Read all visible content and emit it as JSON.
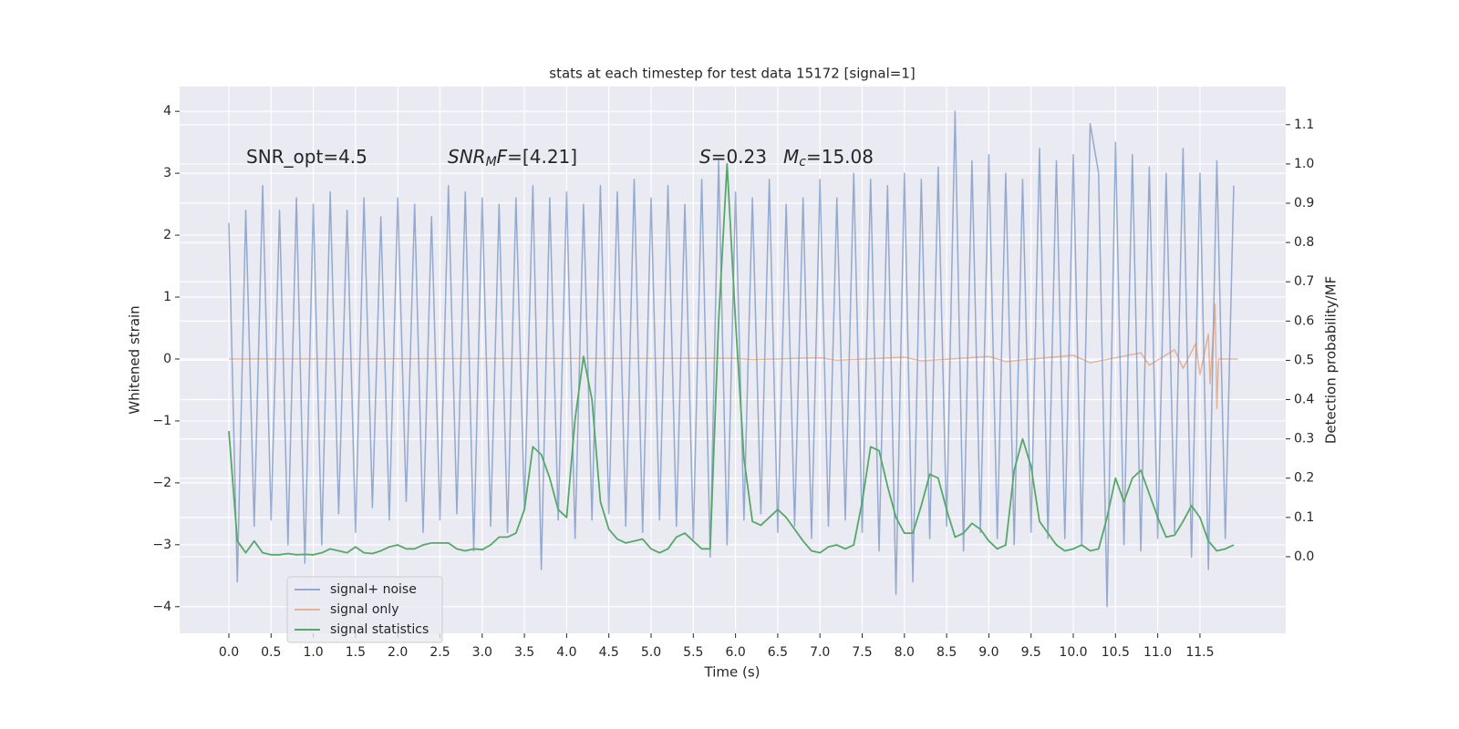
{
  "chart_data": {
    "type": "line",
    "title": "stats at each timestep for test data 15172 [signal=1]",
    "xlabel": "Time (s)",
    "ylabel": "Whitened strain",
    "y2label": "Detection probability/MF",
    "xlim": [
      -0.583,
      12.516
    ],
    "ylim": [
      -4.43,
      4.4
    ],
    "y2lim": [
      -0.195,
      1.197
    ],
    "grid": true,
    "legend": "lower left",
    "xticks": [
      {
        "value": 0,
        "label": "0.0"
      },
      {
        "value": 0.5,
        "label": "0.5"
      },
      {
        "value": 1,
        "label": "1.0"
      },
      {
        "value": 1.5,
        "label": "1.5"
      },
      {
        "value": 2,
        "label": "2.0"
      },
      {
        "value": 2.5,
        "label": "2.5"
      },
      {
        "value": 3,
        "label": "3.0"
      },
      {
        "value": 3.5,
        "label": "3.5"
      },
      {
        "value": 4,
        "label": "4.0"
      },
      {
        "value": 4.5,
        "label": "4.5"
      },
      {
        "value": 5,
        "label": "5.0"
      },
      {
        "value": 5.5,
        "label": "5.5"
      },
      {
        "value": 6,
        "label": "6.0"
      },
      {
        "value": 6.5,
        "label": "6.5"
      },
      {
        "value": 7,
        "label": "7.0"
      },
      {
        "value": 7.5,
        "label": "7.5"
      },
      {
        "value": 8,
        "label": "8.0"
      },
      {
        "value": 8.5,
        "label": "8.5"
      },
      {
        "value": 9,
        "label": "9.0"
      },
      {
        "value": 9.5,
        "label": "9.5"
      },
      {
        "value": 10,
        "label": "10.0"
      },
      {
        "value": 10.5,
        "label": "10.5"
      },
      {
        "value": 11,
        "label": "11.0"
      },
      {
        "value": 11.5,
        "label": "11.5"
      }
    ],
    "yticks": [
      {
        "value": -4,
        "label": "−4"
      },
      {
        "value": -3,
        "label": "−3"
      },
      {
        "value": -2,
        "label": "−2"
      },
      {
        "value": -1,
        "label": "−1"
      },
      0,
      1,
      2,
      3,
      4
    ],
    "y2ticks": [
      {
        "value": 0,
        "label": "0.0"
      },
      {
        "value": 0.1,
        "label": "0.1"
      },
      {
        "value": 0.2,
        "label": "0.2"
      },
      {
        "value": 0.3,
        "label": "0.3"
      },
      {
        "value": 0.4,
        "label": "0.4"
      },
      {
        "value": 0.5,
        "label": "0.5"
      },
      {
        "value": 0.6,
        "label": "0.6"
      },
      {
        "value": 0.7,
        "label": "0.7"
      },
      {
        "value": 0.8,
        "label": "0.8"
      },
      {
        "value": 0.9,
        "label": "0.9"
      },
      {
        "value": 1,
        "label": "1.0"
      },
      {
        "value": 1.1,
        "label": "1.1"
      }
    ],
    "annotations": [
      {
        "parts": [
          {
            "text": "SNR_opt=4.5",
            "style": "normal"
          }
        ]
      },
      {
        "parts": [
          {
            "text": "SNR",
            "style": "italic"
          },
          {
            "text": "M",
            "style": "sub"
          },
          {
            "text": "F",
            "style": "italic"
          },
          {
            "text": "=[4.21]",
            "style": "normal"
          }
        ]
      },
      {
        "parts": [
          {
            "text": "S",
            "style": "italic"
          },
          {
            "text": "=0.23",
            "style": "normal"
          }
        ]
      },
      {
        "parts": [
          {
            "text": "M",
            "style": "italic"
          },
          {
            "text": "c",
            "style": "sub"
          },
          {
            "text": "=15.08",
            "style": "normal"
          }
        ]
      }
    ],
    "series": [
      {
        "name": "signal+ noise",
        "color": "#4c72b0",
        "opacity": 0.55,
        "axis": "y",
        "x": [
          0,
          0.1,
          0.2,
          0.3,
          0.4,
          0.5,
          0.6,
          0.7,
          0.8,
          0.9,
          1,
          1.1,
          1.2,
          1.3,
          1.4,
          1.5,
          1.6,
          1.7,
          1.8,
          1.9,
          2,
          2.1,
          2.2,
          2.3,
          2.4,
          2.5,
          2.6,
          2.7,
          2.8,
          2.9,
          3,
          3.1,
          3.2,
          3.3,
          3.4,
          3.5,
          3.6,
          3.7,
          3.8,
          3.9,
          4,
          4.1,
          4.2,
          4.3,
          4.4,
          4.5,
          4.6,
          4.7,
          4.8,
          4.9,
          5,
          5.1,
          5.2,
          5.3,
          5.4,
          5.5,
          5.6,
          5.7,
          5.8,
          5.9,
          6,
          6.1,
          6.2,
          6.3,
          6.4,
          6.5,
          6.6,
          6.7,
          6.8,
          6.9,
          7,
          7.1,
          7.2,
          7.3,
          7.4,
          7.5,
          7.6,
          7.7,
          7.8,
          7.9,
          8,
          8.1,
          8.2,
          8.3,
          8.4,
          8.5,
          8.6,
          8.7,
          8.8,
          8.9,
          9,
          9.1,
          9.2,
          9.3,
          9.4,
          9.5,
          9.6,
          9.7,
          9.8,
          9.9,
          10,
          10.1,
          10.2,
          10.3,
          10.4,
          10.5,
          10.6,
          10.7,
          10.8,
          10.9,
          11,
          11.1,
          11.2,
          11.3,
          11.4,
          11.5,
          11.6,
          11.7,
          11.8,
          11.9
        ],
        "values": [
          2.2,
          -3.6,
          2.4,
          -2.7,
          2.8,
          -2.6,
          2.4,
          -3.0,
          2.6,
          -3.3,
          2.5,
          -3.0,
          2.7,
          -2.5,
          2.4,
          -2.8,
          2.6,
          -2.4,
          2.3,
          -2.6,
          2.6,
          -2.3,
          2.5,
          -2.8,
          2.3,
          -2.6,
          2.8,
          -2.5,
          2.7,
          -3.1,
          2.6,
          -2.7,
          2.5,
          -2.8,
          2.6,
          -2.4,
          2.8,
          -3.4,
          2.6,
          -2.6,
          2.7,
          -2.9,
          2.5,
          -2.6,
          2.8,
          -2.5,
          2.7,
          -2.7,
          2.9,
          -2.8,
          2.6,
          -2.6,
          2.8,
          -2.7,
          2.5,
          -2.9,
          2.9,
          -3.2,
          3.2,
          -3.0,
          2.7,
          -2.6,
          2.6,
          -2.5,
          2.9,
          -2.8,
          2.5,
          -2.7,
          2.6,
          -2.9,
          2.9,
          -2.7,
          2.6,
          -2.6,
          3.0,
          -2.8,
          2.9,
          -3.1,
          2.8,
          -3.8,
          3.0,
          -3.6,
          2.9,
          -2.9,
          3.1,
          -2.7,
          4.0,
          -3.1,
          3.2,
          -2.8,
          3.3,
          -2.9,
          3.0,
          -3.0,
          2.9,
          -2.8,
          3.4,
          -2.9,
          3.2,
          -2.9,
          3.3,
          -3.0,
          3.8,
          3.0,
          -4.0,
          3.5,
          -3.0,
          3.3,
          -3.1,
          3.1,
          -2.9,
          3.0,
          -2.8,
          3.4,
          -3.2,
          3.0,
          -3.4,
          3.2,
          -2.9,
          2.8
        ]
      },
      {
        "name": "signal only",
        "color": "#dd8452",
        "opacity": 0.55,
        "axis": "y",
        "x": [
          0,
          6,
          6.2,
          7,
          7.2,
          8,
          8.2,
          9,
          9.2,
          10,
          10.2,
          10.8,
          10.9,
          11.2,
          11.3,
          11.45,
          11.5,
          11.6,
          11.62,
          11.68,
          11.7,
          11.72,
          11.95
        ],
        "values": [
          0,
          0.01,
          -0.01,
          0.02,
          -0.02,
          0.03,
          -0.03,
          0.04,
          -0.04,
          0.06,
          -0.06,
          0.1,
          -0.1,
          0.15,
          -0.15,
          0.25,
          -0.25,
          0.4,
          -0.4,
          0.88,
          -0.8,
          0,
          0
        ]
      },
      {
        "name": "signal statistics",
        "color": "#55a868",
        "opacity": 1,
        "axis": "y2",
        "x": [
          0,
          0.1,
          0.2,
          0.3,
          0.4,
          0.5,
          0.6,
          0.7,
          0.8,
          0.9,
          1,
          1.1,
          1.2,
          1.3,
          1.4,
          1.5,
          1.6,
          1.7,
          1.8,
          1.9,
          2,
          2.1,
          2.2,
          2.3,
          2.4,
          2.5,
          2.6,
          2.7,
          2.8,
          2.9,
          3,
          3.1,
          3.2,
          3.3,
          3.4,
          3.5,
          3.6,
          3.7,
          3.8,
          3.9,
          4,
          4.1,
          4.2,
          4.3,
          4.4,
          4.5,
          4.6,
          4.7,
          4.8,
          4.9,
          5,
          5.1,
          5.2,
          5.3,
          5.4,
          5.5,
          5.6,
          5.7,
          5.8,
          5.9,
          6,
          6.1,
          6.2,
          6.3,
          6.4,
          6.5,
          6.6,
          6.7,
          6.8,
          6.9,
          7,
          7.1,
          7.2,
          7.3,
          7.4,
          7.5,
          7.6,
          7.7,
          7.8,
          7.9,
          8,
          8.1,
          8.2,
          8.3,
          8.4,
          8.5,
          8.6,
          8.7,
          8.8,
          8.9,
          9,
          9.1,
          9.2,
          9.3,
          9.4,
          9.5,
          9.6,
          9.7,
          9.8,
          9.9,
          10,
          10.1,
          10.2,
          10.3,
          10.4,
          10.5,
          10.6,
          10.7,
          10.8,
          10.9,
          11,
          11.1,
          11.2,
          11.3,
          11.4,
          11.5,
          11.6,
          11.7,
          11.8,
          11.9
        ],
        "values": [
          0.32,
          0.04,
          0.01,
          0.04,
          0.01,
          0.005,
          0.005,
          0.008,
          0.005,
          0.006,
          0.005,
          0.01,
          0.02,
          0.015,
          0.01,
          0.025,
          0.01,
          0.008,
          0.015,
          0.025,
          0.03,
          0.02,
          0.02,
          0.03,
          0.035,
          0.035,
          0.035,
          0.02,
          0.015,
          0.02,
          0.018,
          0.03,
          0.05,
          0.05,
          0.06,
          0.12,
          0.28,
          0.26,
          0.2,
          0.12,
          0.1,
          0.35,
          0.51,
          0.4,
          0.14,
          0.07,
          0.045,
          0.035,
          0.04,
          0.045,
          0.02,
          0.01,
          0.02,
          0.05,
          0.06,
          0.04,
          0.02,
          0.02,
          0.6,
          1.0,
          0.6,
          0.25,
          0.09,
          0.08,
          0.1,
          0.12,
          0.1,
          0.07,
          0.04,
          0.015,
          0.01,
          0.025,
          0.03,
          0.02,
          0.03,
          0.14,
          0.28,
          0.27,
          0.18,
          0.1,
          0.06,
          0.06,
          0.13,
          0.21,
          0.2,
          0.12,
          0.05,
          0.06,
          0.085,
          0.07,
          0.04,
          0.02,
          0.03,
          0.22,
          0.3,
          0.23,
          0.09,
          0.06,
          0.03,
          0.015,
          0.02,
          0.03,
          0.015,
          0.02,
          0.1,
          0.2,
          0.14,
          0.2,
          0.22,
          0.16,
          0.1,
          0.05,
          0.055,
          0.09,
          0.13,
          0.1,
          0.04,
          0.015,
          0.02,
          0.03
        ]
      }
    ]
  }
}
